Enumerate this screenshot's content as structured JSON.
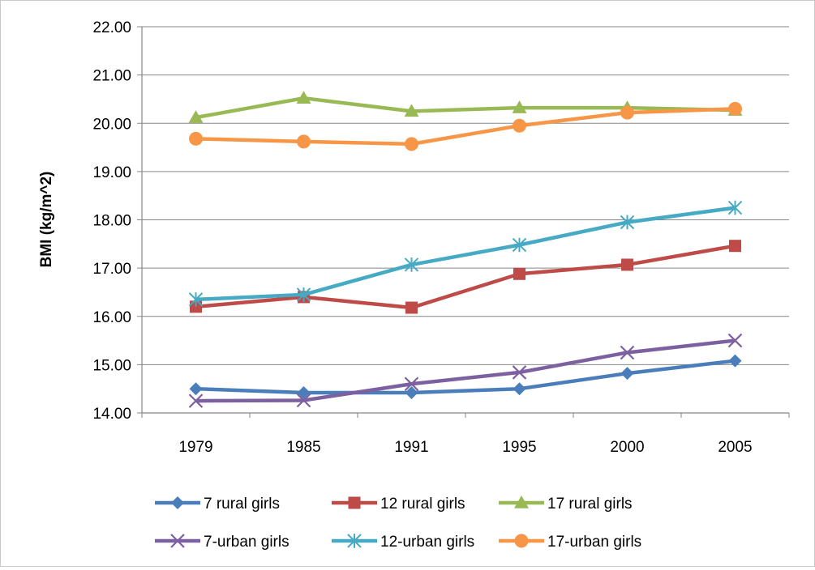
{
  "chart_data": {
    "type": "line",
    "title": "",
    "xlabel": "",
    "ylabel": "BMI (kg/m^2)",
    "categories": [
      "1979",
      "1985",
      "1991",
      "1995",
      "2000",
      "2005"
    ],
    "ylim": [
      14,
      22
    ],
    "ytick_labels": [
      "14.00",
      "15.00",
      "16.00",
      "17.00",
      "18.00",
      "19.00",
      "20.00",
      "21.00",
      "22.00"
    ],
    "grid": true,
    "legend_position": "bottom",
    "series": [
      {
        "name": "7 rural girls",
        "color": "#4a7ebb",
        "marker": "diamond",
        "values": [
          14.5,
          14.42,
          14.42,
          14.5,
          14.82,
          15.08
        ]
      },
      {
        "name": "12 rural girls",
        "color": "#be4b48",
        "marker": "square",
        "values": [
          16.2,
          16.4,
          16.18,
          16.88,
          17.07,
          17.46
        ]
      },
      {
        "name": "17 rural girls",
        "color": "#98b954",
        "marker": "triangle",
        "values": [
          20.12,
          20.52,
          20.25,
          20.32,
          20.32,
          20.27
        ]
      },
      {
        "name": "7-urban girls",
        "color": "#7d60a0",
        "marker": "x",
        "values": [
          14.25,
          14.26,
          14.6,
          14.84,
          15.25,
          15.5
        ]
      },
      {
        "name": "12-urban girls",
        "color": "#46aac5",
        "marker": "star",
        "values": [
          16.35,
          16.45,
          17.07,
          17.48,
          17.95,
          18.25
        ]
      },
      {
        "name": "17-urban girls",
        "color": "#f79646",
        "marker": "circle",
        "values": [
          19.68,
          19.62,
          19.57,
          19.95,
          20.22,
          20.3
        ]
      }
    ]
  }
}
